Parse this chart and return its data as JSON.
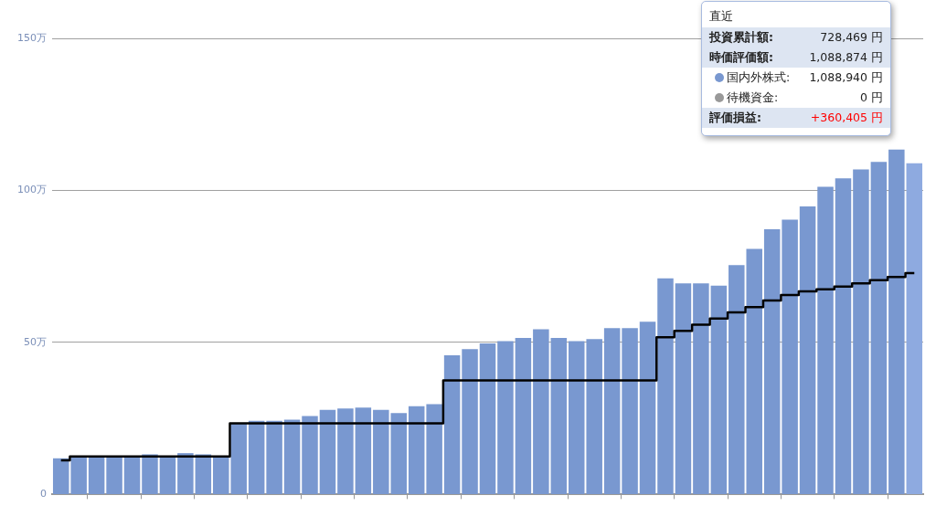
{
  "chart_data": {
    "type": "bar",
    "categories": [
      null,
      null,
      null,
      null,
      null,
      null,
      null,
      null,
      null,
      null,
      null,
      null,
      null,
      null,
      null,
      null,
      null,
      null,
      null,
      null,
      null,
      null,
      null,
      null,
      null,
      null,
      null,
      null,
      null,
      null,
      null,
      null,
      null,
      null,
      null,
      null,
      null,
      null,
      null,
      null,
      null,
      null,
      null,
      null,
      null,
      null,
      null,
      null,
      null
    ],
    "series": [
      {
        "color": "#7998d0",
        "colors": [
          "#7998d0",
          "#7998d0",
          "#7998d0",
          "#7998d0",
          "#7998d0",
          "#7998d0",
          "#7998d0",
          "#7998d0",
          "#7998d0",
          "#7998d0",
          "#7998d0",
          "#7998d0",
          "#7998d0",
          "#7998d0",
          "#7998d0",
          "#7998d0",
          "#7998d0",
          "#7998d0",
          "#7998d0",
          "#7998d0",
          "#7998d0",
          "#7998d0",
          "#7998d0",
          "#7998d0",
          "#7998d0",
          "#7998d0",
          "#7998d0",
          "#7998d0",
          "#7998d0",
          "#7998d0",
          "#7998d0",
          "#7998d0",
          "#7998d0",
          "#7998d0",
          "#7998d0",
          "#7998d0",
          "#7998d0",
          "#7998d0",
          "#7998d0",
          "#7998d0",
          "#7998d0",
          "#7998d0",
          "#7998d0",
          "#7998d0",
          "#7998d0",
          "#7998d0",
          "#7998d0",
          "#7998d0",
          "#8eaae0"
        ],
        "values": [
          11.9,
          12.7,
          12.7,
          12.5,
          12.7,
          13.2,
          12.5,
          13.6,
          13.2,
          12.3,
          23.4,
          24.2,
          24.2,
          24.6,
          25.8,
          27.8,
          28.3,
          28.6,
          27.8,
          26.8,
          29.0,
          29.7,
          45.8,
          47.8,
          49.7,
          50.4,
          51.5,
          54.3,
          51.5,
          50.4,
          51.1,
          54.7,
          54.7,
          56.8,
          71.1,
          69.4,
          69.4,
          68.7,
          75.4,
          80.8,
          87.2,
          90.4,
          94.7,
          101.2,
          104.0,
          106.9,
          109.4,
          113.4,
          108.9
        ]
      },
      {
        "type": "step",
        "color": "#000000",
        "values": [
          11.2,
          12.5,
          12.5,
          12.5,
          12.5,
          12.5,
          12.5,
          12.5,
          12.5,
          12.5,
          23.4,
          23.4,
          23.4,
          23.4,
          23.4,
          23.4,
          23.4,
          23.4,
          23.4,
          23.4,
          23.4,
          23.4,
          37.5,
          37.5,
          37.5,
          37.5,
          37.5,
          37.5,
          37.5,
          37.5,
          37.5,
          37.5,
          37.5,
          37.5,
          51.7,
          53.8,
          55.8,
          57.9,
          59.9,
          61.6,
          63.8,
          65.6,
          66.8,
          67.5,
          68.4,
          69.4,
          70.5,
          71.5,
          72.8
        ]
      }
    ],
    "ylim": [
      0,
      150
    ],
    "yticks": [
      0,
      {
        "value": 50,
        "label": "50万"
      },
      {
        "value": 100,
        "label": "100万"
      },
      {
        "value": 150,
        "label": "150万"
      }
    ],
    "grid": "y",
    "legend": false,
    "marker": "none",
    "tick_labels": "y",
    "annotations": [
      "直近",
      "投資累計額:",
      "728,469 円",
      "時価評価額:",
      "1,088,874 円",
      "国内外株式:",
      "1,088,940 円",
      "待機資金:",
      "0 円",
      "評価損益:",
      "+360,405 円"
    ]
  }
}
